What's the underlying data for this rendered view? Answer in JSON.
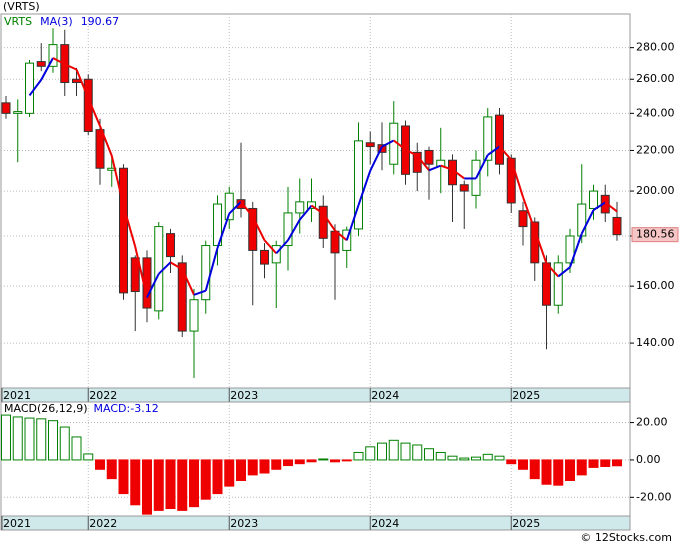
{
  "chart_data": [
    {
      "type": "candlestick",
      "title": "(VRTS)",
      "log_scale": true,
      "grid": true,
      "categories": [
        "2021",
        null,
        null,
        null,
        null,
        null,
        null,
        "2022",
        null,
        null,
        null,
        null,
        null,
        null,
        null,
        null,
        null,
        null,
        null,
        "2023",
        null,
        null,
        null,
        null,
        null,
        null,
        null,
        null,
        null,
        null,
        null,
        "2024",
        null,
        null,
        null,
        null,
        null,
        null,
        null,
        null,
        null,
        null,
        null,
        "2025",
        null,
        null,
        null,
        null,
        null,
        null,
        null,
        null,
        null
      ],
      "ylim": [
        126,
        303
      ],
      "yticks": [
        {
          "value": 140,
          "label": "140.00"
        },
        {
          "value": 160,
          "label": "160.00"
        },
        {
          "value": 180,
          "label": "180.00"
        },
        {
          "value": 200,
          "label": "200.00"
        },
        {
          "value": 220,
          "label": "220.00"
        },
        {
          "value": 240,
          "label": "240.00"
        },
        {
          "value": 260,
          "label": "260.00"
        },
        {
          "value": 280,
          "label": "280.00"
        }
      ],
      "series": [
        {
          "name": "VRTS",
          "up_color": "#008000",
          "down_color": "#ee0000",
          "open": [
            246,
            240,
            240,
            271,
            268,
            282,
            260,
            260,
            231,
            210,
            211,
            171,
            171,
            151,
            181,
            169,
            144,
            155,
            176,
            187,
            196,
            192,
            174,
            169,
            176,
            190,
            192,
            193,
            182,
            174,
            183,
            224,
            223,
            213,
            233,
            219,
            220,
            212,
            215,
            203,
            198,
            215,
            239,
            216,
            191,
            186,
            169,
            153,
            169,
            180,
            192,
            198,
            188
          ],
          "high": [
            250,
            248,
            272,
            283,
            293,
            292,
            267,
            263,
            237,
            218,
            213,
            172,
            174,
            186,
            183,
            172,
            159,
            178,
            198,
            202,
            224,
            195,
            177,
            178,
            202,
            206,
            206,
            198,
            185,
            184,
            235,
            230,
            235,
            247,
            236,
            224,
            222,
            232,
            218,
            205,
            220,
            243,
            243,
            218,
            195,
            188,
            172,
            172,
            183,
            213,
            203,
            203,
            195
          ],
          "low": [
            237,
            214,
            238,
            265,
            264,
            250,
            250,
            228,
            203,
            202,
            155,
            144,
            147,
            148,
            165,
            142,
            129,
            150,
            168,
            183,
            188,
            153,
            163,
            152,
            166,
            181,
            186,
            175,
            155,
            167,
            180,
            213,
            210,
            208,
            203,
            200,
            196,
            199,
            186,
            183,
            192,
            207,
            208,
            190,
            176,
            162,
            138,
            150,
            165,
            177,
            187,
            186,
            178
          ],
          "close": [
            240,
            241,
            270,
            268,
            282,
            258,
            258,
            230,
            211,
            211,
            157.5,
            158,
            152,
            184,
            171.5,
            144,
            155,
            176,
            194,
            199,
            192,
            174,
            168.5,
            176,
            190,
            195,
            195,
            179,
            173,
            182.5,
            225,
            222,
            219,
            234.5,
            208,
            209,
            213,
            215,
            203,
            200,
            215,
            238,
            213,
            194.5,
            184,
            169,
            153,
            169,
            180,
            194,
            200,
            190,
            180.56
          ]
        },
        {
          "name": "MA(3)",
          "up_color": "#0000dd",
          "down_color": "#ee0000",
          "values": [
            null,
            null,
            250.3,
            259.7,
            273.3,
            269.3,
            266,
            248.7,
            233,
            217.3,
            193.2,
            175.5,
            155.8,
            164.7,
            169.2,
            166.5,
            156.8,
            158.3,
            175,
            189.7,
            195,
            188.3,
            178.2,
            172.8,
            178.2,
            187,
            193.3,
            189.7,
            182.3,
            178.2,
            193.5,
            209.8,
            222,
            225.2,
            220.5,
            217.2,
            210,
            212.3,
            210.3,
            206,
            206,
            217.7,
            222,
            215.2,
            197.2,
            182.5,
            168.7,
            163.7,
            167.3,
            181,
            191.3,
            194.7,
            190.67
          ]
        }
      ]
    },
    {
      "type": "bar",
      "grid": true,
      "readout_label": "MACD:",
      "categories": [
        "2021",
        null,
        null,
        null,
        null,
        null,
        null,
        "2022",
        null,
        null,
        null,
        null,
        null,
        null,
        null,
        null,
        null,
        null,
        null,
        "2023",
        null,
        null,
        null,
        null,
        null,
        null,
        null,
        null,
        null,
        null,
        null,
        "2024",
        null,
        null,
        null,
        null,
        null,
        null,
        null,
        null,
        null,
        null,
        null,
        "2025",
        null,
        null,
        null,
        null,
        null,
        null,
        null,
        null,
        null
      ],
      "ylim": [
        -30,
        31
      ],
      "yticks": [
        {
          "value": -20,
          "label": "-20.00"
        },
        {
          "value": 0,
          "label": "0.00"
        },
        {
          "value": 20,
          "label": "20.00"
        }
      ],
      "series": [
        {
          "name": "MACD(26,12,9)",
          "up_color": "#008000",
          "down_color": "#ee0000",
          "values": [
            24,
            23,
            22.4,
            22,
            21,
            17.6,
            12.3,
            3.2,
            -5,
            -10,
            -18,
            -24,
            -29,
            -27,
            -26,
            -27,
            -25,
            -21,
            -18,
            -14,
            -11,
            -8,
            -7,
            -5,
            -3,
            -2,
            -1,
            0.5,
            -1,
            -0.5,
            4,
            7,
            9,
            10.5,
            9,
            8,
            6,
            4,
            2,
            1,
            1.5,
            3,
            2,
            -2,
            -5,
            -10,
            -13,
            -13.5,
            -11,
            -8,
            -4,
            -3.5,
            -3.12
          ]
        }
      ]
    }
  ]
}
